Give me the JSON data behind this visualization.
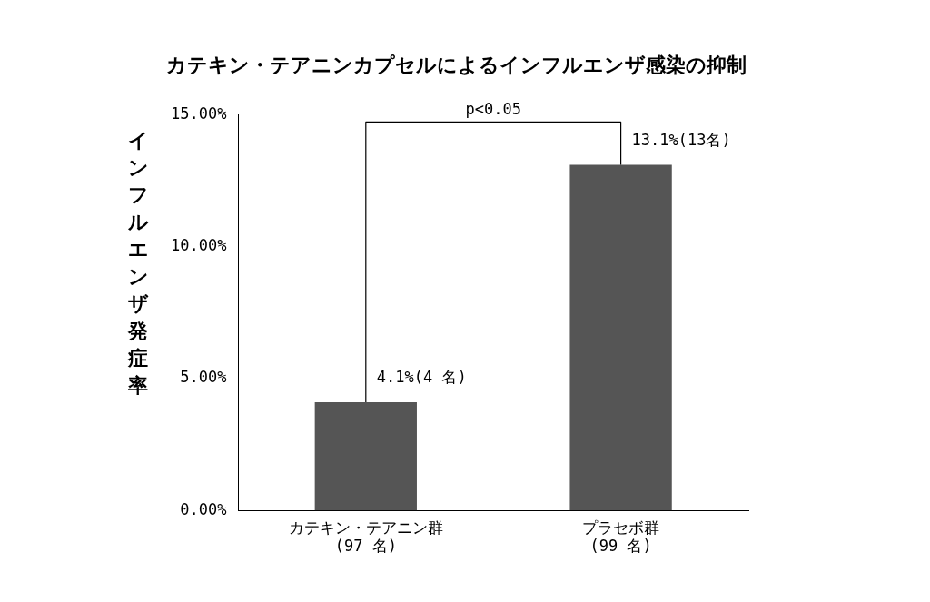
{
  "chart_data": {
    "type": "bar",
    "title": "カテキン・テアニンカプセルによるインフルエンザ感染の抑制",
    "ylabel": "インフルエンザ発症率",
    "categories": [
      "カテキン・テアニン群\n(97 名)",
      "プラセボ群\n(99 名)"
    ],
    "values": [
      4.1,
      13.1
    ],
    "color": "#555555",
    "value_labels": [
      "4.1%(4 名)",
      "13.1%(13名)"
    ],
    "ylim": [
      0,
      15
    ],
    "yticks": [
      {
        "value": 0,
        "label": "0.00%"
      },
      {
        "value": 5,
        "label": "5.00%"
      },
      {
        "value": 10,
        "label": "10.00%"
      },
      {
        "value": 15,
        "label": "15.00%"
      }
    ],
    "annotations": [
      "p<0.05"
    ],
    "grid": false,
    "legend": false
  }
}
